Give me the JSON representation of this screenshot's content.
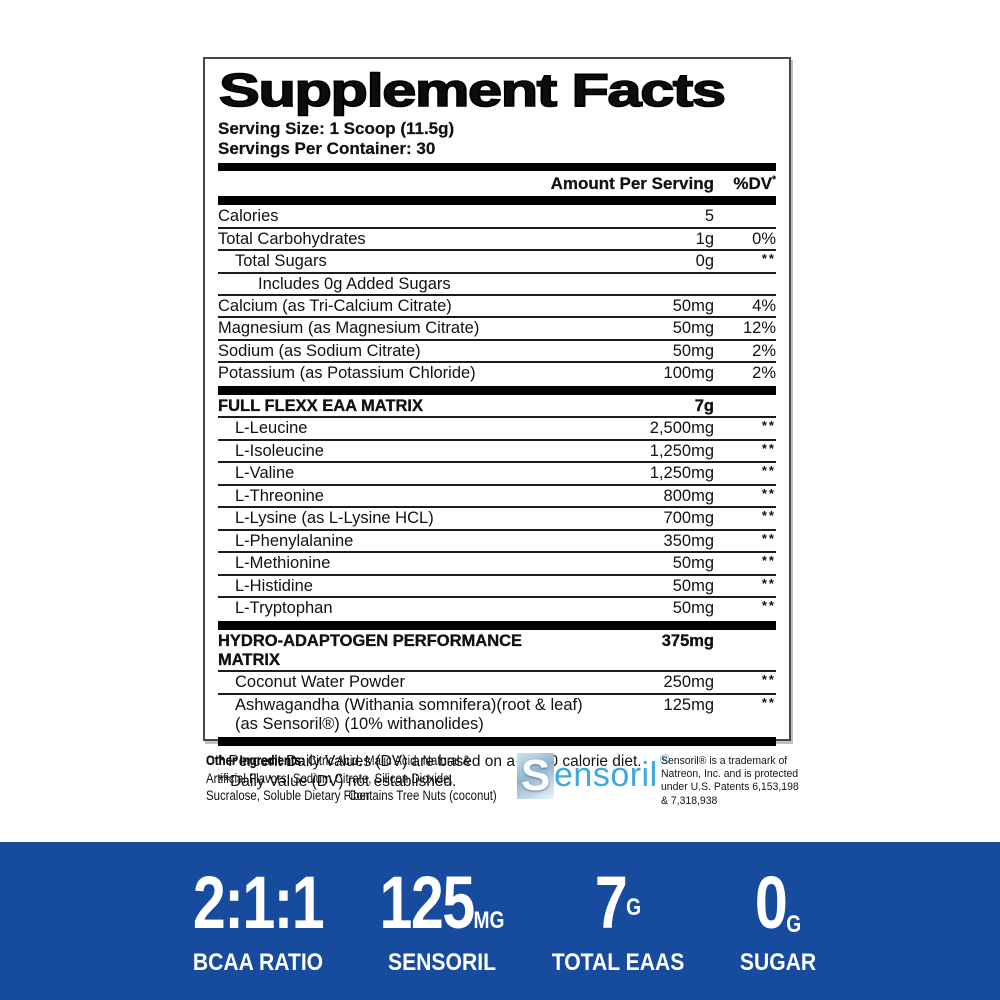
{
  "panel": {
    "title": "Supplement Facts",
    "serving_size": "Serving Size: 1 Scoop (11.5g)",
    "servings_per_container": "Servings Per Container: 30",
    "header": {
      "amount_col": "Amount Per Serving",
      "dv_col": "%DV",
      "dv_sup": "*"
    },
    "main_rows": [
      {
        "name": "Calories",
        "amount": "5",
        "dv": ""
      },
      {
        "name": "Total Carbohydrates",
        "amount": "1g",
        "dv": "0%"
      },
      {
        "name": "Total Sugars",
        "amount": "0g",
        "dv": "**"
      },
      {
        "name": "Includes 0g Added Sugars",
        "amount": "",
        "dv": ""
      },
      {
        "name": "Calcium (as Tri-Calcium Citrate)",
        "amount": "50mg",
        "dv": "4%"
      },
      {
        "name": "Magnesium (as Magnesium Citrate)",
        "amount": "50mg",
        "dv": "12%"
      },
      {
        "name": "Sodium (as Sodium Citrate)",
        "amount": "50mg",
        "dv": "2%"
      },
      {
        "name": "Potassium (as Potassium Chloride)",
        "amount": "100mg",
        "dv": "2%"
      }
    ],
    "eaa": {
      "title": "FULL FLEXX EAA MATRIX",
      "amount": "7g",
      "rows": [
        {
          "name": "L-Leucine",
          "amount": "2,500mg",
          "dv": "**"
        },
        {
          "name": "L-Isoleucine",
          "amount": "1,250mg",
          "dv": "**"
        },
        {
          "name": "L-Valine",
          "amount": "1,250mg",
          "dv": "**"
        },
        {
          "name": "L-Threonine",
          "amount": "800mg",
          "dv": "**"
        },
        {
          "name": "L-Lysine (as L-Lysine HCL)",
          "amount": "700mg",
          "dv": "**"
        },
        {
          "name": "L-Phenylalanine",
          "amount": "350mg",
          "dv": "**"
        },
        {
          "name": "L-Methionine",
          "amount": "50mg",
          "dv": "**"
        },
        {
          "name": "L-Histidine",
          "amount": "50mg",
          "dv": "**"
        },
        {
          "name": "L-Tryptophan",
          "amount": "50mg",
          "dv": "**"
        }
      ]
    },
    "hydro": {
      "title": "HYDRO-ADAPTOGEN PERFORMANCE MATRIX",
      "amount": "375mg",
      "rows": [
        {
          "name": "Coconut Water Powder",
          "amount": "250mg",
          "dv": "**"
        },
        {
          "name": "Ashwagandha (Withania somnifera)(root & leaf)",
          "name_line2": "(as Sensoril®)  (10% withanolides)",
          "amount": "125mg",
          "dv": "**"
        }
      ]
    },
    "footnote_1": "* Percent Daily Values (DV) are based on a 2,000 calorie diet.",
    "footnote_2": "**Daily Value (DV) not established."
  },
  "other_ingredients": {
    "label": "Other Ingredients:",
    "text": " Citric Acid, Malic Acid, Natural & Artificial Flavors, Sodium Citrate, Silicon Dioxide, Sucralose, Soluble Dietary Fiber",
    "contains": "Contains Tree Nuts (coconut)"
  },
  "sensoril": {
    "logo_initial": "S",
    "logo_rest": "ensoril",
    "logo_reg": "®",
    "logo_color": "#3FA9DC",
    "trademark": "Sensoril® is a trademark of Natreon, Inc. and is protected under U.S. Patents 6,153,198 & 7,318,938"
  },
  "banner": {
    "bg_color": "#164B9E",
    "text_color": "#FFFFFF",
    "stats": [
      {
        "value": "2:1:1",
        "unit": "",
        "label": "BCAA RATIO"
      },
      {
        "value": "125",
        "unit": "MG",
        "label": "SENSORIL"
      },
      {
        "value": "7",
        "unit": "G",
        "label": "TOTAL EAAS"
      },
      {
        "value": "0",
        "unit": "G",
        "label": "SUGAR"
      }
    ]
  }
}
